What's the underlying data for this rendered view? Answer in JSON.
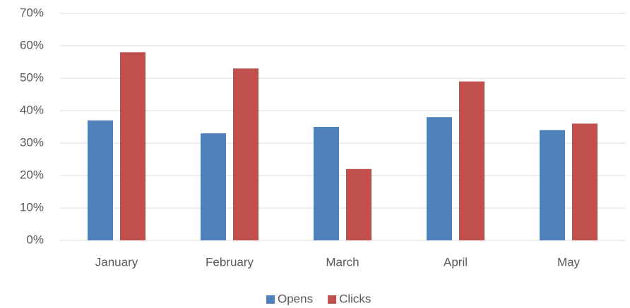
{
  "chart_data": {
    "type": "bar",
    "categories": [
      "January",
      "February",
      "March",
      "April",
      "May"
    ],
    "series": [
      {
        "name": "Opens",
        "color": "#4f81bd",
        "values": [
          37,
          33,
          35,
          38,
          34
        ]
      },
      {
        "name": "Clicks",
        "color": "#c0504d",
        "values": [
          58,
          53,
          22,
          49,
          36
        ]
      }
    ],
    "ylim": [
      0,
      70
    ],
    "yticks": [
      {
        "value": 0,
        "label": "0%"
      },
      {
        "value": 10,
        "label": "10%"
      },
      {
        "value": 20,
        "label": "20%"
      },
      {
        "value": 30,
        "label": "30%"
      },
      {
        "value": 40,
        "label": "40%"
      },
      {
        "value": 50,
        "label": "50%"
      },
      {
        "value": 60,
        "label": "60%"
      },
      {
        "value": 70,
        "label": "70%"
      }
    ],
    "grid": true,
    "legend": "bottom"
  }
}
